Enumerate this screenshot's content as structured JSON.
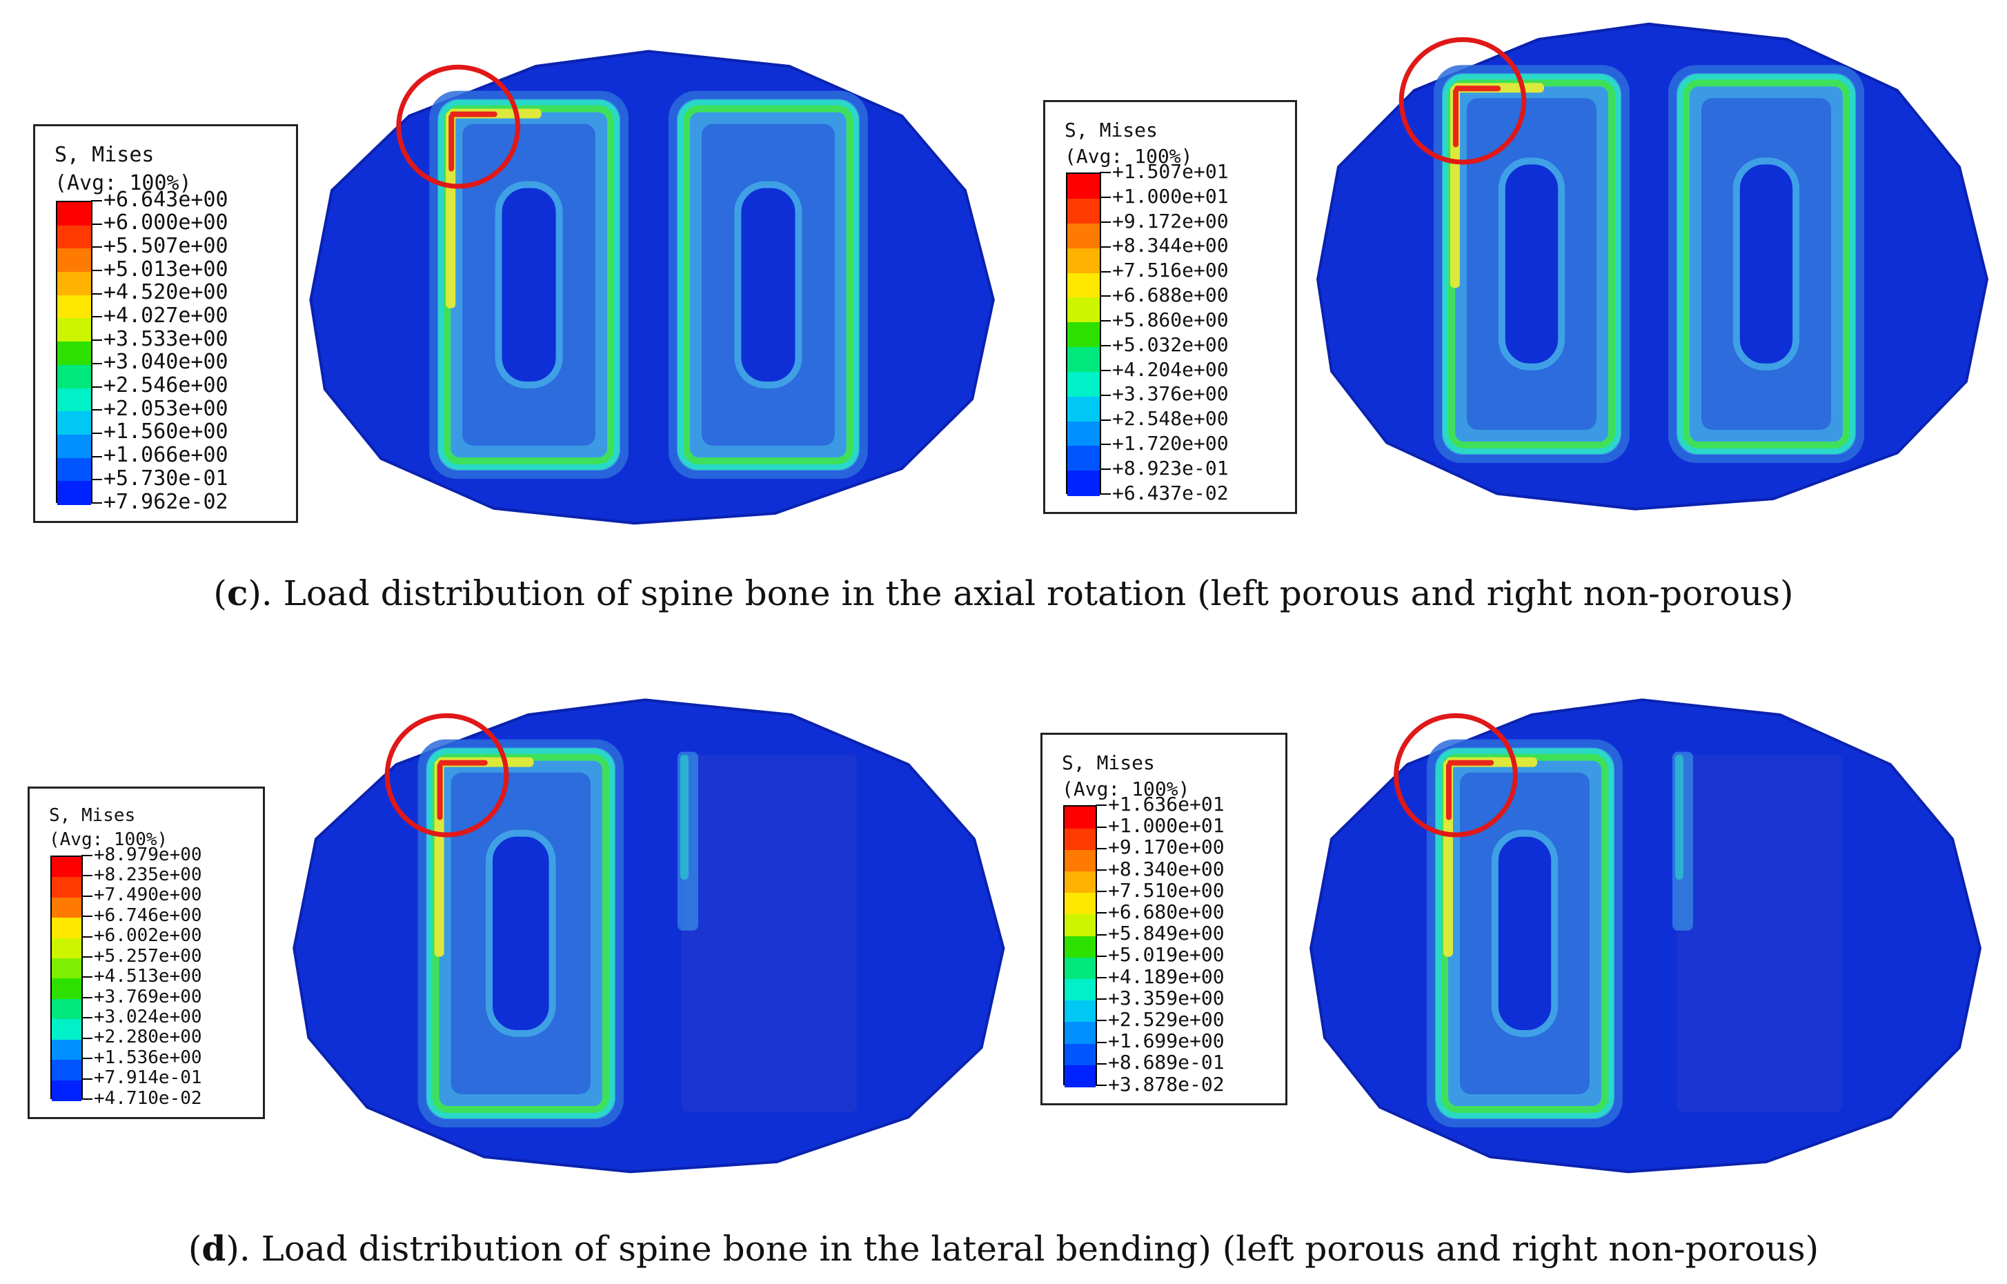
{
  "colors": {
    "bone_base": "#0f2fd6",
    "bone_shadow": "#0a22b0",
    "band_mid": "#2c6cdc",
    "band_light": "#3fa0e6",
    "band_cyan": "#29d8c8",
    "band_green": "#3ee05a",
    "band_yellow": "#dce83a",
    "band_red": "#e8261c",
    "highlight_circle": "#e01818",
    "legend_ramp": [
      "#ff0000",
      "#ff3a00",
      "#ff7a00",
      "#ffb200",
      "#ffe800",
      "#cdf500",
      "#7cf000",
      "#2ee000",
      "#00e87c",
      "#00f0c8",
      "#00c8f5",
      "#0090ff",
      "#0055ff",
      "#0022ff"
    ]
  },
  "panels": [
    {
      "id": "c-left",
      "legend": {
        "title": "S, Mises",
        "subtitle": "(Avg: 100%)",
        "values": [
          "+6.643e+00",
          "+6.000e+00",
          "+5.507e+00",
          "+5.013e+00",
          "+4.520e+00",
          "+4.027e+00",
          "+3.533e+00",
          "+3.040e+00",
          "+2.546e+00",
          "+2.053e+00",
          "+1.560e+00",
          "+1.066e+00",
          "+5.730e-01",
          "+7.962e-02"
        ]
      },
      "bone": {
        "variant": "porous",
        "right_hole": "porous"
      }
    },
    {
      "id": "c-right",
      "legend": {
        "title": "S, Mises",
        "subtitle": "(Avg: 100%)",
        "values": [
          "+1.507e+01",
          "+1.000e+01",
          "+9.172e+00",
          "+8.344e+00",
          "+7.516e+00",
          "+6.688e+00",
          "+5.860e+00",
          "+5.032e+00",
          "+4.204e+00",
          "+3.376e+00",
          "+2.548e+00",
          "+1.720e+00",
          "+8.923e-01",
          "+6.437e-02"
        ]
      },
      "bone": {
        "variant": "non-porous",
        "right_hole": "porous"
      }
    },
    {
      "id": "d-left",
      "legend": {
        "title": "S, Mises",
        "subtitle": "(Avg: 100%)",
        "values": [
          "+8.979e+00",
          "+8.235e+00",
          "+7.490e+00",
          "+6.746e+00",
          "+6.002e+00",
          "+5.257e+00",
          "+4.513e+00",
          "+3.769e+00",
          "+3.024e+00",
          "+2.280e+00",
          "+1.536e+00",
          "+7.914e-01",
          "+4.710e-02"
        ]
      },
      "bone": {
        "variant": "porous",
        "right_hole": "solid"
      }
    },
    {
      "id": "d-right",
      "legend": {
        "title": "S, Mises",
        "subtitle": "(Avg: 100%)",
        "values": [
          "+1.636e+01",
          "+1.000e+01",
          "+9.170e+00",
          "+8.340e+00",
          "+7.510e+00",
          "+6.680e+00",
          "+5.849e+00",
          "+5.019e+00",
          "+4.189e+00",
          "+3.359e+00",
          "+2.529e+00",
          "+1.699e+00",
          "+8.689e-01",
          "+3.878e-02"
        ]
      },
      "bone": {
        "variant": "non-porous",
        "right_hole": "solid"
      }
    }
  ],
  "captions": {
    "c": {
      "letter": "c",
      "text": "). Load distribution of spine bone in the axial rotation (left porous and right non-porous)"
    },
    "d": {
      "letter": "d",
      "text": "). Load distribution of spine bone in the lateral bending) (left porous and right non-porous)"
    }
  }
}
